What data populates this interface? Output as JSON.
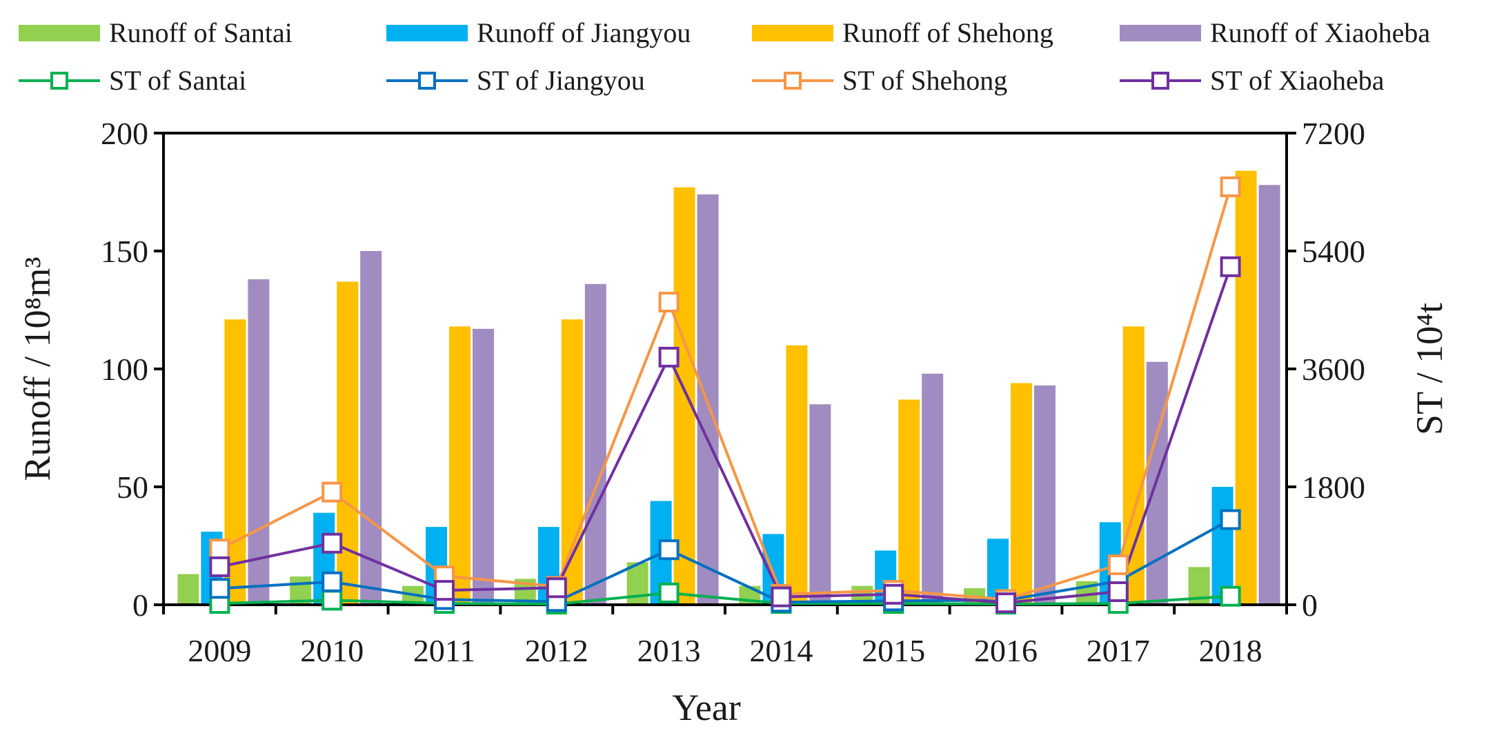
{
  "chart_data": {
    "type": "bar",
    "categories": [
      "2009",
      "2010",
      "2011",
      "2012",
      "2013",
      "2014",
      "2015",
      "2016",
      "2017",
      "2018"
    ],
    "xlabel": "Year",
    "ylabel": "Runoff / 10⁸m³",
    "y2label": "ST / 10⁴t",
    "ylim": [
      0,
      200
    ],
    "y2lim": [
      0,
      7200
    ],
    "yticks": [
      "0",
      "50",
      "100",
      "150",
      "200"
    ],
    "y2ticks": [
      "0",
      "1800",
      "3600",
      "5400",
      "7200"
    ],
    "legend_position": "top",
    "series": [
      {
        "name": "Runoff of Santai",
        "kind": "bar",
        "axis": "left",
        "color": "#92d050",
        "values": [
          13,
          12,
          8,
          11,
          18,
          8,
          8,
          7,
          10,
          16
        ]
      },
      {
        "name": "Runoff of Jiangyou",
        "kind": "bar",
        "axis": "left",
        "color": "#00b0f0",
        "values": [
          31,
          39,
          33,
          33,
          44,
          30,
          23,
          28,
          35,
          50
        ]
      },
      {
        "name": "Runoff of Shehong",
        "kind": "bar",
        "axis": "left",
        "color": "#ffc000",
        "values": [
          121,
          137,
          118,
          121,
          177,
          110,
          87,
          94,
          118,
          184
        ]
      },
      {
        "name": "Runoff of Xiaoheba",
        "kind": "bar",
        "axis": "left",
        "color": "#a08cc0",
        "values": [
          138,
          150,
          117,
          136,
          174,
          85,
          98,
          93,
          103,
          178
        ]
      },
      {
        "name": "ST of Santai",
        "kind": "line",
        "axis": "right",
        "color": "#00b050",
        "values": [
          20,
          70,
          20,
          10,
          180,
          20,
          20,
          10,
          20,
          130
        ]
      },
      {
        "name": "ST of Jiangyou",
        "kind": "line",
        "axis": "right",
        "color": "#0070c0",
        "values": [
          250,
          350,
          80,
          50,
          840,
          40,
          60,
          70,
          360,
          1300
        ]
      },
      {
        "name": "ST of Shehong",
        "kind": "line",
        "axis": "right",
        "color": "#f79646",
        "values": [
          850,
          1720,
          440,
          280,
          4620,
          160,
          220,
          80,
          610,
          6380
        ]
      },
      {
        "name": "ST of Xiaoheba",
        "kind": "line",
        "axis": "right",
        "color": "#7030a0",
        "values": [
          580,
          940,
          220,
          260,
          3780,
          120,
          160,
          30,
          200,
          5160
        ]
      }
    ]
  }
}
